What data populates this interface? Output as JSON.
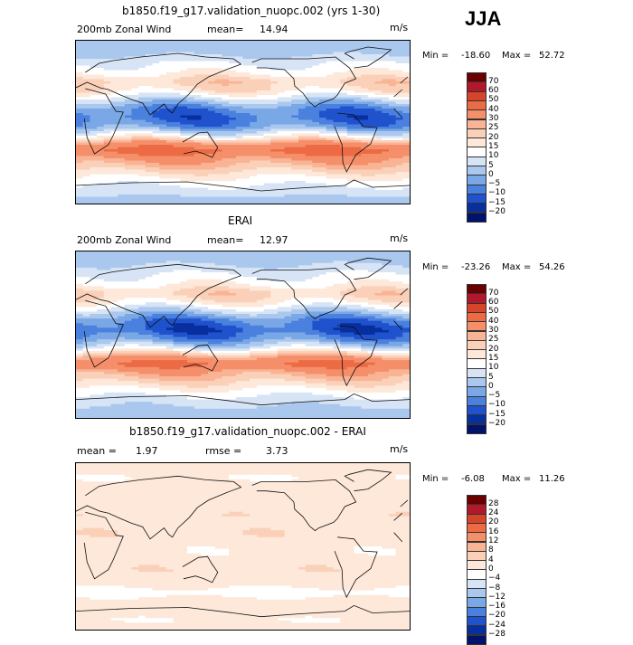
{
  "season": "JJA",
  "panels": [
    {
      "title": "b1850.f19_g17.validation_nuopc.002 (yrs 1-30)",
      "variable": "200mb Zonal Wind",
      "mean_label": "mean=",
      "mean": "14.94",
      "units": "m/s",
      "min_label": "Min =",
      "min": "-18.60",
      "max_label": "Max =",
      "max": "52.72",
      "colorbar_labels": [
        "70",
        "60",
        "50",
        "40",
        "30",
        "25",
        "20",
        "15",
        "10",
        "5",
        "0",
        "−5",
        "−10",
        "−15",
        "−20"
      ],
      "colors": [
        "#6b0000",
        "#b2182b",
        "#d6452a",
        "#ec6b45",
        "#f58f6a",
        "#f9b395",
        "#fbd0b9",
        "#fde8d9",
        "#ffffff",
        "#d6e4f6",
        "#aac8ee",
        "#7aa7e6",
        "#4a80de",
        "#1f52cc",
        "#082f9e",
        "#00126b"
      ]
    },
    {
      "title": "ERAI",
      "variable": "200mb Zonal Wind",
      "mean_label": "mean=",
      "mean": "12.97",
      "units": "m/s",
      "min_label": "Min =",
      "min": "-23.26",
      "max_label": "Max =",
      "max": "54.26",
      "colorbar_labels": [
        "70",
        "60",
        "50",
        "40",
        "30",
        "25",
        "20",
        "15",
        "10",
        "5",
        "0",
        "−5",
        "−10",
        "−15",
        "−20"
      ],
      "colors": [
        "#6b0000",
        "#b2182b",
        "#d6452a",
        "#ec6b45",
        "#f58f6a",
        "#f9b395",
        "#fbd0b9",
        "#fde8d9",
        "#ffffff",
        "#d6e4f6",
        "#aac8ee",
        "#7aa7e6",
        "#4a80de",
        "#1f52cc",
        "#082f9e",
        "#00126b"
      ]
    },
    {
      "title": "b1850.f19_g17.validation_nuopc.002 - ERAI",
      "mean_label": "mean =",
      "mean": "1.97",
      "rmse_label": "rmse =",
      "rmse": "3.73",
      "units": "m/s",
      "min_label": "Min =",
      "min": "-6.08",
      "max_label": "Max =",
      "max": "11.26",
      "colorbar_labels": [
        "28",
        "24",
        "20",
        "16",
        "12",
        "8",
        "4",
        "0",
        "−4",
        "−8",
        "−12",
        "−16",
        "−20",
        "−24",
        "−28"
      ],
      "colors": [
        "#6b0000",
        "#b2182b",
        "#d6452a",
        "#ec6b45",
        "#f58f6a",
        "#f9b395",
        "#fbd0b9",
        "#fde8d9",
        "#ffffff",
        "#d6e4f6",
        "#aac8ee",
        "#7aa7e6",
        "#4a80de",
        "#1f52cc",
        "#082f9e",
        "#00126b"
      ]
    }
  ],
  "chart_data": [
    {
      "type": "heatmap",
      "title": "b1850.f19_g17.validation_nuopc.002 (yrs 1-30)",
      "field": "200mb Zonal Wind (JJA)",
      "units": "m/s",
      "lat_range": [
        -90,
        90
      ],
      "lon_range": [
        0,
        360
      ],
      "bands": [
        {
          "lat": 85,
          "u": 2
        },
        {
          "lat": 75,
          "u": 4
        },
        {
          "lat": 65,
          "u": 10
        },
        {
          "lat": 55,
          "u": 14
        },
        {
          "lat": 45,
          "u": 22
        },
        {
          "lat": 35,
          "u": 18
        },
        {
          "lat": 25,
          "u": 6
        },
        {
          "lat": 15,
          "u": -6
        },
        {
          "lat": 5,
          "u": -10
        },
        {
          "lat": -5,
          "u": -4
        },
        {
          "lat": -15,
          "u": 12
        },
        {
          "lat": -25,
          "u": 34
        },
        {
          "lat": -32,
          "u": 44
        },
        {
          "lat": -40,
          "u": 32
        },
        {
          "lat": -50,
          "u": 24
        },
        {
          "lat": -60,
          "u": 16
        },
        {
          "lat": -70,
          "u": 10
        },
        {
          "lat": -80,
          "u": 6
        },
        {
          "lat": -88,
          "u": 2
        }
      ],
      "levels": [
        -20,
        -15,
        -10,
        -5,
        0,
        5,
        10,
        15,
        20,
        25,
        30,
        40,
        50,
        60,
        70
      ],
      "min": -18.6,
      "max": 52.72,
      "mean": 14.94
    },
    {
      "type": "heatmap",
      "title": "ERAI",
      "field": "200mb Zonal Wind (JJA)",
      "units": "m/s",
      "lat_range": [
        -90,
        90
      ],
      "lon_range": [
        0,
        360
      ],
      "bands": [
        {
          "lat": 85,
          "u": 2
        },
        {
          "lat": 75,
          "u": 5
        },
        {
          "lat": 65,
          "u": 10
        },
        {
          "lat": 55,
          "u": 14
        },
        {
          "lat": 45,
          "u": 22
        },
        {
          "lat": 35,
          "u": 16
        },
        {
          "lat": 25,
          "u": 4
        },
        {
          "lat": 15,
          "u": -8
        },
        {
          "lat": 5,
          "u": -12
        },
        {
          "lat": -5,
          "u": -5
        },
        {
          "lat": -15,
          "u": 10
        },
        {
          "lat": -25,
          "u": 32
        },
        {
          "lat": -32,
          "u": 42
        },
        {
          "lat": -40,
          "u": 30
        },
        {
          "lat": -50,
          "u": 22
        },
        {
          "lat": -60,
          "u": 14
        },
        {
          "lat": -70,
          "u": 8
        },
        {
          "lat": -80,
          "u": 4
        },
        {
          "lat": -88,
          "u": 2
        }
      ],
      "levels": [
        -20,
        -15,
        -10,
        -5,
        0,
        5,
        10,
        15,
        20,
        25,
        30,
        40,
        50,
        60,
        70
      ],
      "min": -23.26,
      "max": 54.26,
      "mean": 12.97
    },
    {
      "type": "heatmap",
      "title": "b1850.f19_g17.validation_nuopc.002 - ERAI",
      "field": "200mb Zonal Wind difference (JJA)",
      "units": "m/s",
      "lat_range": [
        -90,
        90
      ],
      "lon_range": [
        0,
        360
      ],
      "bands": [
        {
          "lat": 85,
          "u": 1
        },
        {
          "lat": 75,
          "u": 0
        },
        {
          "lat": 65,
          "u": 1
        },
        {
          "lat": 55,
          "u": 2
        },
        {
          "lat": 45,
          "u": 1
        },
        {
          "lat": 35,
          "u": 3
        },
        {
          "lat": 25,
          "u": 2
        },
        {
          "lat": 15,
          "u": 3
        },
        {
          "lat": 5,
          "u": 2
        },
        {
          "lat": -5,
          "u": 1
        },
        {
          "lat": -15,
          "u": 2
        },
        {
          "lat": -25,
          "u": 3
        },
        {
          "lat": -32,
          "u": 2
        },
        {
          "lat": -40,
          "u": 2
        },
        {
          "lat": -50,
          "u": -2
        },
        {
          "lat": -60,
          "u": 2
        },
        {
          "lat": -70,
          "u": 1
        },
        {
          "lat": -80,
          "u": 0
        },
        {
          "lat": -88,
          "u": 1
        }
      ],
      "levels": [
        -28,
        -24,
        -20,
        -16,
        -12,
        -8,
        -4,
        0,
        4,
        8,
        12,
        16,
        20,
        24,
        28
      ],
      "min": -6.08,
      "max": 11.26,
      "mean": 1.97,
      "rmse": 3.73
    }
  ]
}
